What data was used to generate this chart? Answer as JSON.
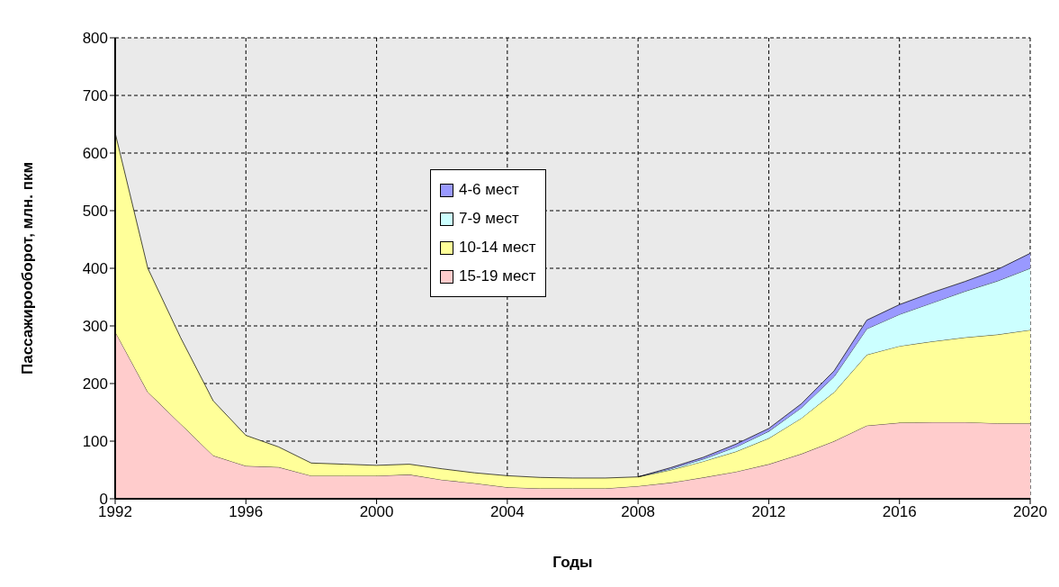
{
  "chart_data": {
    "type": "area",
    "stacked": true,
    "xlabel": "Годы",
    "ylabel": "Пассажирооборот, млн. пкм",
    "x": [
      1992,
      1993,
      1994,
      1995,
      1996,
      1997,
      1998,
      1999,
      2000,
      2001,
      2002,
      2003,
      2004,
      2005,
      2006,
      2007,
      2008,
      2009,
      2010,
      2011,
      2012,
      2013,
      2014,
      2015,
      2016,
      2017,
      2018,
      2019,
      2020
    ],
    "series": [
      {
        "name": "15-19 мест",
        "color": "#ffcccc",
        "values": [
          290,
          185,
          130,
          75,
          57,
          55,
          40,
          40,
          40,
          42,
          33,
          27,
          20,
          18,
          18,
          18,
          22,
          28,
          37,
          47,
          60,
          78,
          100,
          127,
          132,
          133,
          133,
          131,
          131
        ]
      },
      {
        "name": "10-14 мест",
        "color": "#ffff99",
        "values": [
          345,
          215,
          150,
          95,
          53,
          35,
          22,
          20,
          18,
          18,
          19,
          18,
          20,
          19,
          18,
          18,
          16,
          22,
          28,
          35,
          45,
          62,
          85,
          123,
          133,
          140,
          147,
          154,
          162
        ]
      },
      {
        "name": "7-9 мест",
        "color": "#ccffff",
        "values": [
          null,
          null,
          null,
          null,
          null,
          null,
          null,
          null,
          null,
          null,
          null,
          null,
          null,
          null,
          null,
          null,
          0,
          2,
          4,
          8,
          12,
          18,
          27,
          45,
          55,
          67,
          80,
          93,
          107
        ]
      },
      {
        "name": "4-6 мест",
        "color": "#9999ff",
        "values": [
          null,
          null,
          null,
          null,
          null,
          null,
          null,
          null,
          null,
          null,
          null,
          null,
          null,
          null,
          null,
          null,
          0,
          2,
          3,
          5,
          5,
          7,
          10,
          15,
          17,
          18,
          17,
          20,
          26
        ]
      }
    ],
    "xlim": [
      1992,
      2020
    ],
    "xticks": [
      1992,
      1996,
      2000,
      2004,
      2008,
      2012,
      2016,
      2020
    ],
    "ylim": [
      0,
      800
    ],
    "yticks": [
      0,
      100,
      200,
      300,
      400,
      500,
      600,
      700,
      800
    ],
    "grid": true,
    "legend": "top left"
  }
}
